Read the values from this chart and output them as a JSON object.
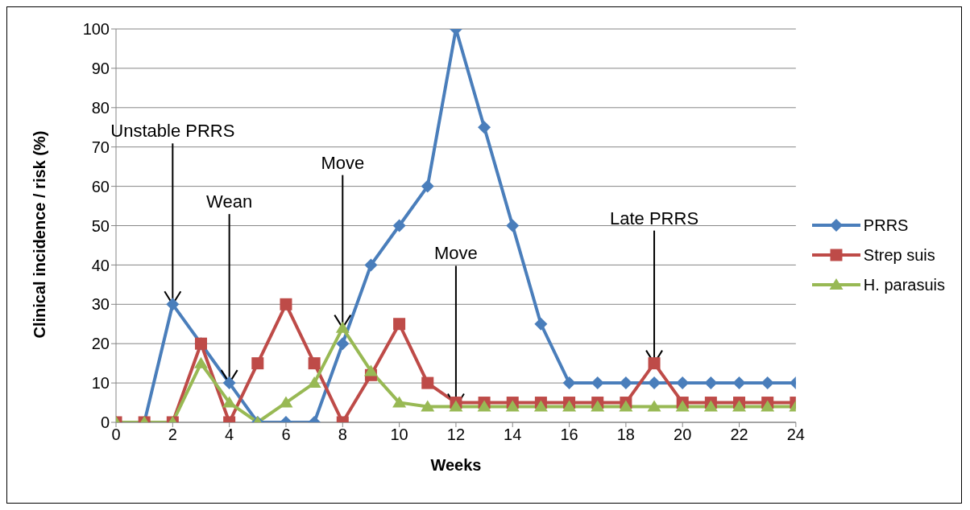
{
  "chart_data": {
    "type": "line",
    "xlabel": "Weeks",
    "ylabel": "Clinical incidence / risk (%)",
    "x": [
      0,
      1,
      2,
      3,
      4,
      5,
      6,
      7,
      8,
      9,
      10,
      11,
      12,
      13,
      14,
      15,
      16,
      17,
      18,
      19,
      20,
      21,
      22,
      23,
      24
    ],
    "series": [
      {
        "name": "PRRS",
        "color": "#4a7ebb",
        "marker": "diamond",
        "values": [
          0,
          0,
          30,
          20,
          10,
          0,
          0,
          0,
          20,
          40,
          50,
          60,
          100,
          75,
          50,
          25,
          10,
          10,
          10,
          10,
          10,
          10,
          10,
          10,
          10
        ]
      },
      {
        "name": "Strep suis",
        "color": "#be4b48",
        "marker": "square",
        "values": [
          0,
          0,
          0,
          20,
          0,
          15,
          30,
          15,
          0,
          12,
          25,
          10,
          5,
          5,
          5,
          5,
          5,
          5,
          5,
          15,
          5,
          5,
          5,
          5,
          5
        ]
      },
      {
        "name": "H. parasuis",
        "color": "#98b954",
        "marker": "triangle",
        "values": [
          0,
          0,
          0,
          15,
          5,
          0,
          5,
          10,
          24,
          13,
          5,
          4,
          4,
          4,
          4,
          4,
          4,
          4,
          4,
          4,
          4,
          4,
          4,
          4,
          4
        ]
      }
    ],
    "xlim": [
      0,
      24
    ],
    "xticks": [
      0,
      2,
      4,
      6,
      8,
      10,
      12,
      14,
      16,
      18,
      20,
      22,
      24
    ],
    "ylim": [
      0,
      100
    ],
    "yticks": [
      0,
      10,
      20,
      30,
      40,
      50,
      60,
      70,
      80,
      90,
      100
    ],
    "grid": "y",
    "legend": "right",
    "line_style": "solid",
    "annotations": [
      {
        "text": "Unstable PRRS",
        "x": 2,
        "y": 30
      },
      {
        "text": "Wean",
        "x": 4,
        "y": 10
      },
      {
        "text": "Move",
        "x": 8,
        "y": 24
      },
      {
        "text": "Move",
        "x": 12,
        "y": 4
      },
      {
        "text": "Late PRRS",
        "x": 19,
        "y": 15
      }
    ]
  }
}
